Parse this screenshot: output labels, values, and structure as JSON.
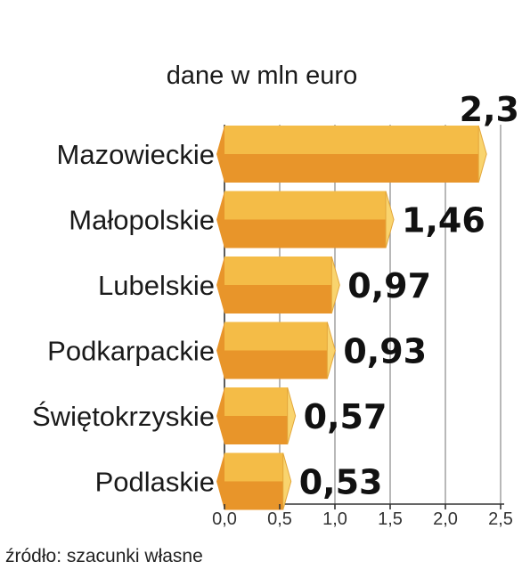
{
  "chart_data": {
    "type": "bar",
    "orientation": "horizontal",
    "unit_label": "dane w mln euro",
    "categories": [
      "Mazowieckie",
      "Małopolskie",
      "Lubelskie",
      "Podkarpackie",
      "Świętokrzyskie",
      "Podlaskie"
    ],
    "values": [
      2.3,
      1.46,
      0.97,
      0.93,
      0.57,
      0.53
    ],
    "value_labels": [
      "2,3",
      "1,46",
      "0,97",
      "0,93",
      "0,57",
      "0,53"
    ],
    "xlim": [
      0,
      2.5
    ],
    "ticks": [
      0,
      0.5,
      1.0,
      1.5,
      2.0,
      2.5
    ],
    "tick_labels": [
      "0,0",
      "0,5",
      "1,0",
      "1,5",
      "2,0",
      "2,5"
    ],
    "grid": true,
    "source": "źródło: szacunki własne",
    "colors": {
      "bar_top": "#F4BC47",
      "bar_bottom": "#E8952A",
      "bar_cap": "#F9D46E",
      "grid": "#9a9a9a",
      "text": "#1a1a1a"
    }
  }
}
